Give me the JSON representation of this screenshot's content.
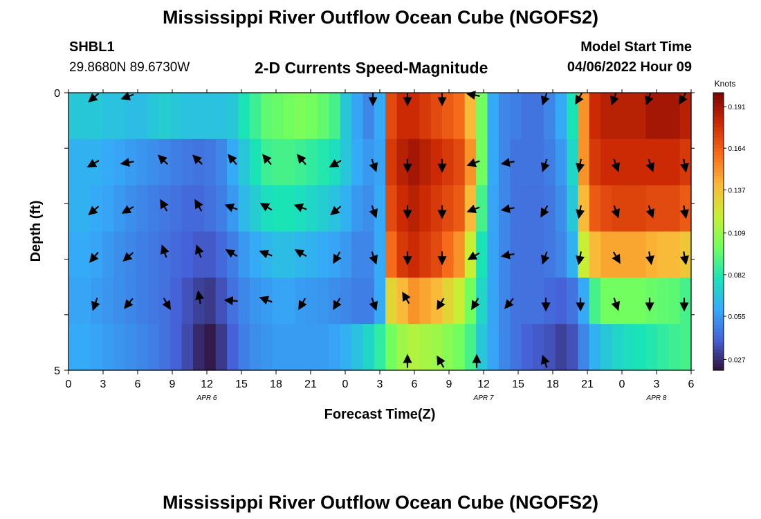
{
  "title": "Mississippi River Outflow Ocean Cube (NGOFS2)",
  "station": {
    "id": "SHBL1",
    "coords": "29.8680N  89.6730W"
  },
  "model_start": {
    "label": "Model Start Time",
    "value": "04/06/2022 Hour 09"
  },
  "chart_data": {
    "type": "heatmap",
    "title": "2-D Currents Speed-Magnitude",
    "xlabel": "Forecast Time(Z)",
    "ylabel": "Depth (ft)",
    "x_ticks": [
      "0",
      "3",
      "6",
      "9",
      "12",
      "15",
      "18",
      "21",
      "0",
      "3",
      "6",
      "9",
      "12",
      "15",
      "18",
      "21",
      "0",
      "3",
      "6"
    ],
    "x_range_hours": [
      0,
      54
    ],
    "date_labels": [
      {
        "label": "APR 6",
        "hour": 12
      },
      {
        "label": "APR 7",
        "hour": 36
      },
      {
        "label": "APR 8",
        "hour": 51
      }
    ],
    "y_ticks": [
      "0",
      "5"
    ],
    "ylim": [
      0,
      5
    ],
    "colorbar": {
      "label": "Knots",
      "ticks": [
        0.191,
        0.164,
        0.137,
        0.109,
        0.082,
        0.055,
        0.027
      ],
      "range": [
        0.02,
        0.2
      ],
      "colors": [
        "#30123b",
        "#4662d8",
        "#35abf8",
        "#1ae4b6",
        "#72fe5e",
        "#c8ef34",
        "#faba39",
        "#f66b19",
        "#cb2a04",
        "#7a0403"
      ]
    },
    "layers_speed_knots": [
      [
        0.07,
        0.07,
        0.07,
        0.068,
        0.068,
        0.066,
        0.066,
        0.07,
        0.072,
        0.07,
        0.068,
        0.068,
        0.068,
        0.068,
        0.07,
        0.08,
        0.088,
        0.096,
        0.098,
        0.1,
        0.102,
        0.1,
        0.096,
        0.09,
        0.07,
        0.058,
        0.05,
        0.06,
        0.17,
        0.18,
        0.18,
        0.175,
        0.17,
        0.165,
        0.16,
        0.14,
        0.1,
        0.06,
        0.05,
        0.048,
        0.045,
        0.045,
        0.05,
        0.06,
        0.08,
        0.15,
        0.18,
        0.185,
        0.185,
        0.185,
        0.185,
        0.19,
        0.19,
        0.19,
        0.185
      ],
      [
        0.062,
        0.062,
        0.062,
        0.06,
        0.058,
        0.056,
        0.054,
        0.052,
        0.05,
        0.048,
        0.046,
        0.045,
        0.046,
        0.05,
        0.06,
        0.07,
        0.08,
        0.088,
        0.09,
        0.09,
        0.088,
        0.085,
        0.082,
        0.078,
        0.07,
        0.06,
        0.055,
        0.058,
        0.175,
        0.185,
        0.19,
        0.185,
        0.18,
        0.175,
        0.17,
        0.15,
        0.1,
        0.06,
        0.05,
        0.045,
        0.045,
        0.045,
        0.048,
        0.055,
        0.075,
        0.15,
        0.175,
        0.18,
        0.18,
        0.18,
        0.18,
        0.18,
        0.18,
        0.18,
        0.175
      ],
      [
        0.062,
        0.062,
        0.06,
        0.058,
        0.055,
        0.052,
        0.05,
        0.048,
        0.046,
        0.044,
        0.042,
        0.042,
        0.044,
        0.048,
        0.055,
        0.065,
        0.072,
        0.078,
        0.08,
        0.08,
        0.078,
        0.075,
        0.072,
        0.068,
        0.062,
        0.055,
        0.052,
        0.06,
        0.17,
        0.18,
        0.185,
        0.18,
        0.175,
        0.17,
        0.165,
        0.14,
        0.09,
        0.058,
        0.05,
        0.045,
        0.044,
        0.044,
        0.046,
        0.052,
        0.07,
        0.14,
        0.165,
        0.17,
        0.172,
        0.172,
        0.172,
        0.17,
        0.17,
        0.17,
        0.165
      ],
      [
        0.06,
        0.06,
        0.058,
        0.055,
        0.052,
        0.05,
        0.048,
        0.046,
        0.044,
        0.042,
        0.04,
        0.038,
        0.038,
        0.042,
        0.048,
        0.055,
        0.06,
        0.064,
        0.066,
        0.066,
        0.064,
        0.062,
        0.06,
        0.058,
        0.055,
        0.05,
        0.05,
        0.06,
        0.16,
        0.175,
        0.18,
        0.175,
        0.17,
        0.16,
        0.15,
        0.12,
        0.08,
        0.058,
        0.05,
        0.045,
        0.044,
        0.044,
        0.046,
        0.05,
        0.062,
        0.12,
        0.14,
        0.145,
        0.145,
        0.145,
        0.145,
        0.142,
        0.14,
        0.14,
        0.135
      ],
      [
        0.058,
        0.058,
        0.056,
        0.054,
        0.052,
        0.05,
        0.048,
        0.046,
        0.044,
        0.04,
        0.036,
        0.032,
        0.03,
        0.036,
        0.044,
        0.05,
        0.054,
        0.056,
        0.058,
        0.058,
        0.056,
        0.055,
        0.054,
        0.052,
        0.05,
        0.048,
        0.048,
        0.06,
        0.13,
        0.14,
        0.15,
        0.145,
        0.14,
        0.13,
        0.12,
        0.1,
        0.075,
        0.058,
        0.05,
        0.045,
        0.044,
        0.044,
        0.042,
        0.04,
        0.045,
        0.06,
        0.09,
        0.1,
        0.1,
        0.1,
        0.1,
        0.098,
        0.096,
        0.095,
        0.09
      ],
      [
        0.06,
        0.06,
        0.058,
        0.056,
        0.054,
        0.052,
        0.05,
        0.048,
        0.044,
        0.04,
        0.034,
        0.026,
        0.022,
        0.03,
        0.04,
        0.048,
        0.052,
        0.054,
        0.056,
        0.056,
        0.056,
        0.056,
        0.056,
        0.058,
        0.062,
        0.068,
        0.075,
        0.085,
        0.1,
        0.11,
        0.115,
        0.112,
        0.11,
        0.105,
        0.1,
        0.09,
        0.07,
        0.058,
        0.05,
        0.045,
        0.04,
        0.038,
        0.036,
        0.032,
        0.036,
        0.05,
        0.062,
        0.07,
        0.075,
        0.078,
        0.08,
        0.082,
        0.085,
        0.088,
        0.09
      ]
    ],
    "arrow_hours": [
      3,
      6,
      9,
      12,
      15,
      18,
      21,
      24,
      27,
      30,
      33,
      36,
      39,
      42,
      45,
      48,
      51,
      54
    ],
    "arrow_directions_deg": [
      [
        230,
        250,
        null,
        null,
        null,
        null,
        null,
        null,
        180,
        180,
        180,
        280,
        null,
        200,
        210,
        200,
        200,
        210
      ],
      [
        240,
        260,
        315,
        315,
        320,
        320,
        320,
        240,
        160,
        180,
        180,
        250,
        260,
        200,
        190,
        160,
        160,
        170
      ],
      [
        230,
        240,
        330,
        330,
        290,
        300,
        290,
        230,
        160,
        180,
        180,
        250,
        260,
        210,
        190,
        160,
        160,
        170
      ],
      [
        220,
        230,
        340,
        340,
        300,
        290,
        300,
        210,
        160,
        180,
        180,
        240,
        260,
        200,
        190,
        150,
        170,
        170
      ],
      [
        200,
        220,
        150,
        350,
        275,
        290,
        210,
        210,
        160,
        330,
        210,
        210,
        220,
        180,
        180,
        160,
        180,
        180
      ],
      [
        null,
        null,
        null,
        null,
        null,
        null,
        null,
        null,
        null,
        360,
        330,
        360,
        null,
        340,
        null,
        null,
        null,
        null
      ]
    ]
  }
}
